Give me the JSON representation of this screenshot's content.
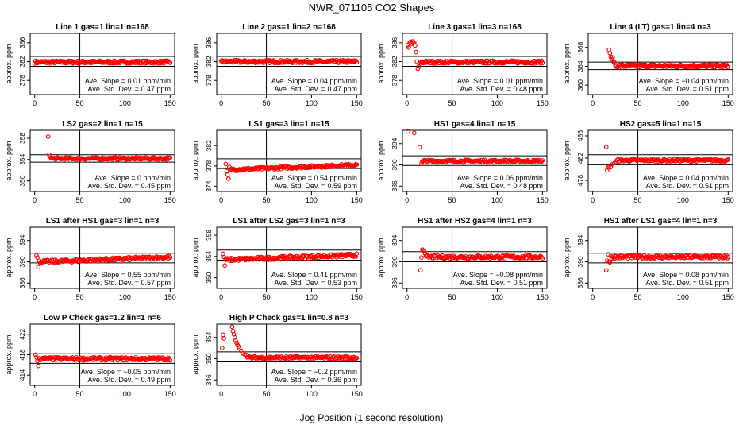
{
  "figure": {
    "title": "NWR_071105  CO2 Shapes",
    "xlabel": "Jog Position (1 second resolution)"
  },
  "chart_data": [
    {
      "type": "scatter",
      "title": "Line 1 gas=1 lin=1 n=168",
      "ylabel": "approx. ppm",
      "xlim": [
        -5,
        155
      ],
      "ylim": [
        375,
        388
      ],
      "yticks": [
        378,
        382,
        386
      ],
      "xticks": [
        0,
        50,
        100,
        150
      ],
      "vline": 50,
      "hlines": [
        383.1,
        381.0
      ],
      "level": 381.9,
      "noise": 0.3,
      "points": [],
      "slope": "Ave. Slope =  0.01  ppm/min",
      "stddev": "Ave. Std. Dev. =  0.47  ppm"
    },
    {
      "type": "scatter",
      "title": "Line 2 gas=1 lin=2 n=168",
      "ylabel": "approx. ppm",
      "xlim": [
        -5,
        155
      ],
      "ylim": [
        375,
        388
      ],
      "yticks": [
        378,
        382,
        386
      ],
      "xticks": [
        0,
        50,
        100,
        150
      ],
      "vline": 50,
      "hlines": [
        383.1,
        381.0
      ],
      "level": 382.0,
      "noise": 0.3,
      "points": [],
      "slope": "Ave. Slope =  0.04  ppm/min",
      "stddev": "Ave. Std. Dev. =  0.47  ppm"
    },
    {
      "type": "scatter",
      "title": "Line 3 gas=1 lin=3 n=168",
      "ylabel": "approx. ppm",
      "xlim": [
        -5,
        155
      ],
      "ylim": [
        375,
        388
      ],
      "yticks": [
        378,
        382,
        386
      ],
      "xticks": [
        0,
        50,
        100,
        150
      ],
      "vline": 50,
      "hlines": [
        383.1,
        381.0
      ],
      "level": 381.9,
      "noise": 0.3,
      "points": [
        [
          1,
          385.5
        ],
        [
          2,
          385.0
        ],
        [
          3,
          386.0
        ],
        [
          4,
          386.2
        ],
        [
          5,
          385.8
        ],
        [
          6,
          386.3
        ],
        [
          7,
          386.0
        ],
        [
          8,
          386.1
        ],
        [
          9,
          385.4
        ],
        [
          10,
          384.0
        ],
        [
          11,
          382.0
        ],
        [
          12,
          380.5
        ],
        [
          13,
          381.0
        ],
        [
          14,
          381.6
        ]
      ],
      "slope": "Ave. Slope =  0.01  ppm/min",
      "stddev": "Ave. Std. Dev. =  0.48  ppm"
    },
    {
      "type": "scatter",
      "title": "Line 4 (LT) gas=1 lin=4 n=3",
      "ylabel": "approx. ppm",
      "xlim": [
        -5,
        155
      ],
      "ylim": [
        358,
        371
      ],
      "yticks": [
        360,
        364,
        368
      ],
      "xticks": [
        0,
        50,
        100,
        150
      ],
      "vline": 50,
      "hlines": [
        364.9,
        363.3
      ],
      "level": 364.1,
      "noise": 0.35,
      "points": [
        [
          18,
          367.5
        ],
        [
          19,
          366.8
        ],
        [
          20,
          366.0
        ],
        [
          21,
          365.5
        ],
        [
          22,
          365.9
        ],
        [
          23,
          365.0
        ],
        [
          24,
          364.8
        ]
      ],
      "slope": "Ave. Slope =  −0.04  ppm/min",
      "stddev": "Ave. Std. Dev. =  0.51  ppm"
    },
    {
      "type": "scatter",
      "title": "LS2 gas=2 lin=1 n=15",
      "ylabel": "approx. ppm",
      "xlim": [
        -5,
        155
      ],
      "ylim": [
        348,
        359.5
      ],
      "yticks": [
        350,
        354,
        358
      ],
      "xticks": [
        0,
        50,
        100,
        150
      ],
      "vline": 50,
      "hlines": [
        354.9,
        353.5
      ],
      "level": 354.2,
      "noise": 0.2,
      "points": [
        [
          15,
          358.3
        ],
        [
          16,
          354.9
        ],
        [
          17,
          354.6
        ]
      ],
      "slope": "Ave. Slope =  0  ppm/min",
      "stddev": "Ave. Std. Dev. =  0.45  ppm"
    },
    {
      "type": "scatter",
      "title": "LS1 gas=3 lin=1 n=15",
      "ylabel": "approx. ppm",
      "xlim": [
        -5,
        155
      ],
      "ylim": [
        373,
        385
      ],
      "yticks": [
        374,
        378,
        382
      ],
      "xticks": [
        0,
        50,
        100,
        150
      ],
      "vline": 50,
      "hlines": [
        379.4,
        377.5
      ],
      "level": 377.7,
      "noise": 0.25,
      "trend": 1.0,
      "points": [
        [
          5,
          378.4
        ],
        [
          6,
          377.0
        ],
        [
          7,
          376.3
        ],
        [
          8,
          375.5
        ],
        [
          9,
          377.8
        ]
      ],
      "slope": "Ave. Slope =  0.54  ppm/min",
      "stddev": "Ave. Std. Dev. =  0.59  ppm"
    },
    {
      "type": "scatter",
      "title": "HS1 gas=4 lin=1 n=15",
      "ylabel": "approx. ppm",
      "xlim": [
        -5,
        155
      ],
      "ylim": [
        385,
        396.5
      ],
      "yticks": [
        386,
        390,
        394
      ],
      "xticks": [
        0,
        50,
        100,
        150
      ],
      "vline": 50,
      "hlines": [
        391.7,
        389.9
      ],
      "level": 390.7,
      "noise": 0.25,
      "points": [
        [
          1,
          396.3
        ],
        [
          8,
          396.0
        ],
        [
          14,
          393.3
        ],
        [
          16,
          390.2
        ],
        [
          17,
          390.6
        ]
      ],
      "slope": "Ave. Slope =  0.06  ppm/min",
      "stddev": "Ave. Std. Dev. =  0.48  ppm"
    },
    {
      "type": "scatter",
      "title": "HS2 gas=5 lin=1 n=15",
      "ylabel": "approx. ppm",
      "xlim": [
        -5,
        155
      ],
      "ylim": [
        476,
        487
      ],
      "yticks": [
        478,
        482,
        486
      ],
      "xticks": [
        0,
        50,
        100,
        150
      ],
      "vline": 50,
      "hlines": [
        482.6,
        480.8
      ],
      "level": 481.6,
      "noise": 0.2,
      "points": [
        [
          15,
          484.0
        ],
        [
          16,
          479.8
        ],
        [
          17,
          480.3
        ],
        [
          18,
          480.6
        ],
        [
          20,
          480.4
        ],
        [
          22,
          480.9
        ],
        [
          24,
          481.1
        ],
        [
          26,
          481.3
        ]
      ],
      "slope": "Ave. Slope =  0.04  ppm/min",
      "stddev": "Ave. Std. Dev. =  0.51  ppm"
    },
    {
      "type": "scatter",
      "title": "LS1 after HS1 gas=3 lin=1 n=3",
      "ylabel": "approx. ppm",
      "xlim": [
        -5,
        155
      ],
      "ylim": [
        385,
        396.5
      ],
      "yticks": [
        386,
        390,
        394
      ],
      "xticks": [
        0,
        50,
        100,
        150
      ],
      "vline": 50,
      "hlines": [
        391.6,
        389.8
      ],
      "level": 390.4,
      "noise": 0.3,
      "trend": 0.9,
      "points": [
        [
          2,
          391.2
        ],
        [
          3,
          390.8
        ],
        [
          4,
          389.0
        ],
        [
          5,
          390.2
        ]
      ],
      "slope": "Ave. Slope =  0.55  ppm/min",
      "stddev": "Ave. Std. Dev. =  0.57  ppm"
    },
    {
      "type": "scatter",
      "title": "LS1 after LS2 gas=3 lin=1 n=3",
      "ylabel": "approx. ppm",
      "xlim": [
        -5,
        155
      ],
      "ylim": [
        348,
        359.5
      ],
      "yticks": [
        350,
        354,
        358
      ],
      "xticks": [
        0,
        50,
        100,
        150
      ],
      "vline": 50,
      "hlines": [
        355.2,
        353.3
      ],
      "level": 353.8,
      "noise": 0.3,
      "trend": 0.9,
      "points": [
        [
          2,
          354.5
        ],
        [
          3,
          353.9
        ],
        [
          4,
          352.3
        ],
        [
          5,
          353.5
        ]
      ],
      "slope": "Ave. Slope =  0.41  ppm/min",
      "stddev": "Ave. Std. Dev. =  0.53  ppm"
    },
    {
      "type": "scatter",
      "title": "HS1 after HS2 gas=4 lin=1 n=3",
      "ylabel": "approx. ppm",
      "xlim": [
        -5,
        155
      ],
      "ylim": [
        385,
        396.5
      ],
      "yticks": [
        386,
        390,
        394
      ],
      "xticks": [
        0,
        50,
        100,
        150
      ],
      "vline": 50,
      "hlines": [
        391.9,
        390.0
      ],
      "level": 390.9,
      "noise": 0.3,
      "points": [
        [
          15,
          388.4
        ],
        [
          16,
          390.8
        ],
        [
          17,
          392.3
        ],
        [
          18,
          392.1
        ],
        [
          19,
          392.0
        ],
        [
          20,
          391.6
        ]
      ],
      "slope": "Ave. Slope =  −0.08  ppm/min",
      "stddev": "Ave. Std. Dev. =  0.51  ppm"
    },
    {
      "type": "scatter",
      "title": "HS1 after LS1 gas=4 lin=1 n=3",
      "ylabel": "approx. ppm",
      "xlim": [
        -5,
        155
      ],
      "ylim": [
        385,
        396.5
      ],
      "yticks": [
        386,
        390,
        394
      ],
      "xticks": [
        0,
        50,
        100,
        150
      ],
      "vline": 50,
      "hlines": [
        391.6,
        389.8
      ],
      "level": 390.9,
      "noise": 0.3,
      "points": [
        [
          15,
          388.4
        ],
        [
          16,
          390.2
        ],
        [
          17,
          391.4
        ],
        [
          18,
          390.0
        ],
        [
          19,
          389.9
        ]
      ],
      "slope": "Ave. Slope =  0.08  ppm/min",
      "stddev": "Ave. Std. Dev. =  0.51  ppm"
    },
    {
      "type": "scatter",
      "title": "Low P Check gas=1.2 lin=1 n=6",
      "ylabel": "approx. ppm",
      "xlim": [
        -5,
        155
      ],
      "ylim": [
        412,
        424
      ],
      "yticks": [
        414,
        418,
        422
      ],
      "xticks": [
        0,
        50,
        100,
        150
      ],
      "vline": 50,
      "hlines": [
        418.2,
        416.3
      ],
      "level": 417.2,
      "noise": 0.3,
      "points": [
        [
          1,
          418.0
        ],
        [
          2,
          417.5
        ],
        [
          3,
          416.8
        ],
        [
          4,
          415.8
        ],
        [
          5,
          417.3
        ]
      ],
      "slope": "Ave. Slope =  −0.05  ppm/min",
      "stddev": "Ave. Std. Dev. =  0.49  ppm"
    },
    {
      "type": "scatter",
      "title": "High P Check gas=1 lin=0.8 n=3",
      "ylabel": "approx. ppm",
      "xlim": [
        -5,
        155
      ],
      "ylim": [
        345,
        356.5
      ],
      "yticks": [
        346,
        350,
        354
      ],
      "xticks": [
        0,
        50,
        100,
        150
      ],
      "vline": 50,
      "hlines": [
        351.3,
        349.4
      ],
      "level": 350.2,
      "noise": 0.25,
      "points": [
        [
          1,
          352.0
        ],
        [
          2,
          354.5
        ],
        [
          3,
          353.8
        ],
        [
          12,
          356.0
        ],
        [
          13,
          355.2
        ],
        [
          14,
          354.6
        ],
        [
          15,
          354.0
        ],
        [
          16,
          353.4
        ],
        [
          17,
          353.0
        ],
        [
          18,
          352.6
        ],
        [
          19,
          352.3
        ],
        [
          20,
          352.0
        ],
        [
          22,
          351.5
        ],
        [
          24,
          351.0
        ],
        [
          26,
          350.8
        ],
        [
          28,
          350.7
        ]
      ],
      "slope": "Ave. Slope =  −0.2  ppm/min",
      "stddev": "Ave. Std. Dev. =  0.36  ppm"
    }
  ]
}
